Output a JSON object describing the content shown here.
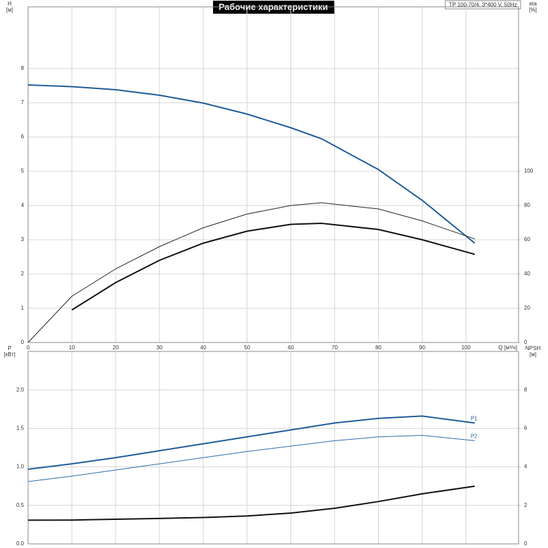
{
  "title": "Рабочие характеристики",
  "model": "TP 100-70/4, 3*400 V, 50Hz",
  "chart_data": [
    {
      "type": "line",
      "y_label": [
        "H",
        "[м]"
      ],
      "y2_label": [
        "eta",
        "[%]"
      ],
      "x_label": "Q [м³/ч]",
      "x": [
        0,
        10,
        20,
        30,
        40,
        50,
        60,
        67,
        80,
        90,
        102
      ],
      "xlim": [
        0,
        112
      ],
      "xticks": [
        0,
        10,
        20,
        30,
        40,
        50,
        60,
        70,
        80,
        90,
        100
      ],
      "ylim": [
        0,
        9.8
      ],
      "yticks": [
        0,
        1,
        2,
        3,
        4,
        5,
        6,
        7,
        8
      ],
      "y2lim": [
        0,
        196
      ],
      "y2ticks": [
        0,
        20,
        40,
        60,
        80,
        100
      ],
      "grid": true,
      "series": [
        {
          "color": "#1f5b99",
          "line_width": 2,
          "axis": "y",
          "values": [
            7.52,
            7.47,
            7.38,
            7.22,
            6.99,
            6.67,
            6.27,
            5.95,
            5.05,
            4.15,
            2.9
          ]
        },
        {
          "color": "#222222",
          "line_width": 1,
          "axis": "y2",
          "values": [
            0,
            27,
            43,
            56,
            67,
            75,
            80,
            81.6,
            78,
            71,
            60.5
          ]
        },
        {
          "color": "#111111",
          "line_width": 2,
          "axis": "y2",
          "values": [
            null,
            19,
            35,
            48,
            58,
            65,
            69,
            69.6,
            66,
            60,
            51.5
          ]
        }
      ]
    },
    {
      "type": "line",
      "y_label": [
        "P",
        "[кВт]"
      ],
      "y2_label": [
        "NPSH",
        "[м]"
      ],
      "x": [
        0,
        10,
        20,
        30,
        40,
        50,
        60,
        70,
        80,
        90,
        102
      ],
      "xlim": [
        0,
        112
      ],
      "ylim": [
        0,
        2.5
      ],
      "yticks": [
        {
          "value": 0,
          "label": "0.0"
        },
        0.5,
        {
          "value": 1,
          "label": "1.0"
        },
        1.5,
        {
          "value": 2,
          "label": "2.0"
        }
      ],
      "y2lim": [
        0,
        10
      ],
      "y2ticks": [
        0,
        2,
        4,
        6,
        8
      ],
      "grid": true,
      "series": [
        {
          "name": "P1",
          "color": "#1f5b99",
          "line_width": 2,
          "axis": "y",
          "values": [
            0.97,
            1.04,
            1.12,
            1.21,
            1.3,
            1.39,
            1.48,
            1.57,
            1.63,
            1.66,
            1.57
          ]
        },
        {
          "name": "P2",
          "color": "#2d6aa8",
          "line_width": 1,
          "axis": "y",
          "values": [
            0.81,
            0.88,
            0.96,
            1.04,
            1.12,
            1.2,
            1.27,
            1.34,
            1.39,
            1.41,
            1.34
          ]
        },
        {
          "color": "#111111",
          "line_width": 2,
          "axis": "y2",
          "values": [
            1.23,
            1.24,
            1.28,
            1.32,
            1.37,
            1.45,
            1.6,
            1.85,
            2.2,
            2.6,
            3.0
          ]
        }
      ]
    }
  ]
}
